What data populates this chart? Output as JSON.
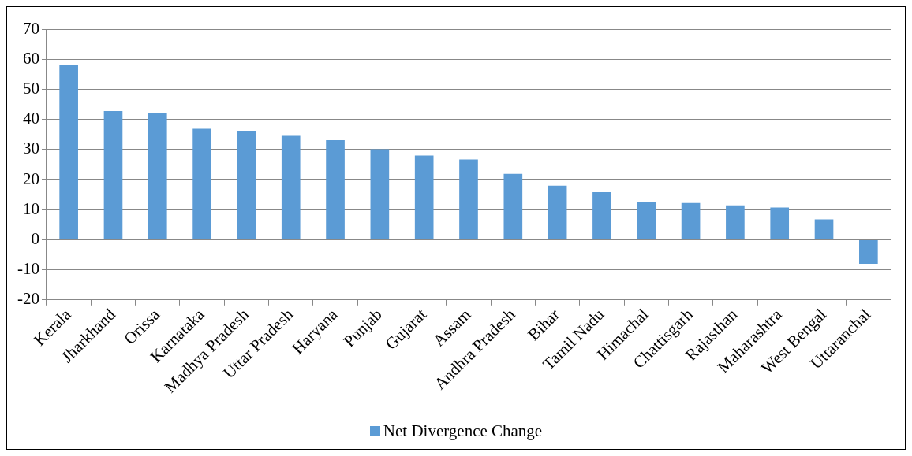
{
  "chart_data": {
    "type": "bar",
    "categories": [
      "Kerala",
      "Jharkhand",
      "Orissa",
      "Karnataka",
      "Madhya Pradesh",
      "Uttar Pradesh",
      "Haryana",
      "Punjab",
      "Gujarat",
      "Assam",
      "Andhra Pradesh",
      "Bihar",
      "Tamil Nadu",
      "Himachal",
      "Chattisgarh",
      "Rajasthan",
      "Maharashtra",
      "West Bengal",
      "Uttaranchal"
    ],
    "series": [
      {
        "name": "Net Divergence Change",
        "color": "#5b9bd5",
        "values": [
          58,
          42.8,
          42.1,
          36.9,
          36.2,
          34.5,
          33.1,
          30.1,
          28,
          26.7,
          21.9,
          18,
          15.8,
          12.4,
          12.2,
          11.4,
          10.7,
          6.8,
          -8
        ]
      }
    ],
    "ylim": [
      -20,
      70
    ],
    "yticks": [
      -20,
      -10,
      0,
      10,
      20,
      30,
      40,
      50,
      60,
      70
    ],
    "grid": "y",
    "legend": "bottom"
  }
}
